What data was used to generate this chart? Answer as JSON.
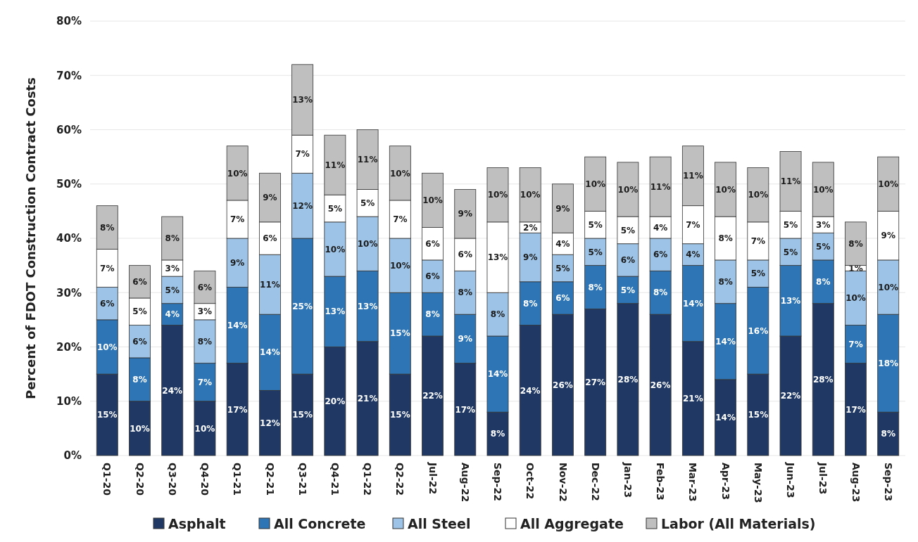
{
  "chart_data": {
    "type": "bar",
    "stacked": true,
    "ylabel": "Percent of FDOT Construction Contract Costs",
    "categories": [
      "Q1-20",
      "Q2-20",
      "Q3-20",
      "Q4-20",
      "Q1-21",
      "Q2-21",
      "Q3-21",
      "Q4-21",
      "Q1-22",
      "Q2-22",
      "Jul-22",
      "Aug-22",
      "Sep-22",
      "Oct-22",
      "Nov-22",
      "Dec-22",
      "Jan-23",
      "Feb-23",
      "Mar-23",
      "Apr-23",
      "May-23",
      "Jun-23",
      "Jul-23",
      "Aug-23",
      "Sep-23"
    ],
    "ylim": [
      0,
      80
    ],
    "yticks": [
      {
        "value": 0,
        "label": "0%"
      },
      {
        "value": 10,
        "label": "10%"
      },
      {
        "value": 20,
        "label": "20%"
      },
      {
        "value": 30,
        "label": "30%"
      },
      {
        "value": 40,
        "label": "40%"
      },
      {
        "value": 50,
        "label": "50%"
      },
      {
        "value": 60,
        "label": "60%"
      },
      {
        "value": 70,
        "label": "70%"
      },
      {
        "value": 80,
        "label": "80%"
      }
    ],
    "grid": "y",
    "legend": "bottom",
    "series": [
      {
        "name": "Asphalt",
        "color": "#1f3864",
        "values": [
          15,
          10,
          24,
          10,
          17,
          12,
          15,
          20,
          21,
          15,
          22,
          17,
          8,
          24,
          26,
          27,
          28,
          26,
          21,
          14,
          15,
          22,
          28,
          17,
          8
        ],
        "value_labels": [
          "15%",
          "10%",
          "24%",
          "10%",
          "17%",
          "12%",
          "15%",
          "20%",
          "21%",
          "15%",
          "22%",
          "17%",
          "8%",
          "24%",
          "26%",
          "27%",
          "28%",
          "26%",
          "21%",
          "14%",
          "15%",
          "22%",
          "28%",
          "17%",
          "8%"
        ]
      },
      {
        "name": "All Concrete",
        "color": "#2e75b6",
        "values": [
          10,
          8,
          4,
          7,
          14,
          14,
          25,
          13,
          13,
          15,
          8,
          9,
          14,
          8,
          6,
          8,
          5,
          8,
          14,
          14,
          16,
          13,
          8,
          7,
          18
        ],
        "value_labels": [
          "10%",
          "8%",
          "4%",
          "7%",
          "14%",
          "14%",
          "25%",
          "13%",
          "13%",
          "15%",
          "8%",
          "9%",
          "14%",
          "8%",
          "6%",
          "8%",
          "5%",
          "8%",
          "14%",
          "14%",
          "16%",
          "13%",
          "8%",
          "7%",
          "18%"
        ]
      },
      {
        "name": "All Steel",
        "color": "#9dc3e6",
        "values": [
          6,
          6,
          5,
          8,
          9,
          11,
          12,
          10,
          10,
          10,
          6,
          8,
          8,
          9,
          5,
          5,
          6,
          6,
          4,
          8,
          5,
          5,
          5,
          10,
          10
        ],
        "value_labels": [
          "6%",
          "6%",
          "5%",
          "8%",
          "9%",
          "11%",
          "12%",
          "10%",
          "10%",
          "10%",
          "6%",
          "8%",
          "8%",
          "9%",
          "5%",
          "5%",
          "6%",
          "6%",
          "4%",
          "8%",
          "5%",
          "5%",
          "5%",
          "10%",
          "10%"
        ]
      },
      {
        "name": "All Aggregate",
        "color": "#ffffff",
        "values": [
          7,
          5,
          3,
          3,
          7,
          6,
          7,
          5,
          5,
          7,
          6,
          6,
          13,
          2,
          4,
          5,
          5,
          4,
          7,
          8,
          7,
          5,
          3,
          1,
          9
        ],
        "value_labels": [
          "7%",
          "5%",
          "3%",
          "3%",
          "7%",
          "6%",
          "7%",
          "5%",
          "5%",
          "7%",
          "6%",
          "6%",
          "13%",
          "2%",
          "4%",
          "5%",
          "5%",
          "4%",
          "7%",
          "8%",
          "7%",
          "5%",
          "3%",
          "1%",
          "9%"
        ]
      },
      {
        "name": "Labor (All Materials)",
        "color": "#bfbfbf",
        "values": [
          8,
          6,
          8,
          6,
          10,
          9,
          13,
          11,
          11,
          10,
          10,
          9,
          10,
          10,
          9,
          10,
          10,
          11,
          11,
          10,
          10,
          11,
          10,
          8,
          10
        ],
        "value_labels": [
          "8%",
          "6%",
          "8%",
          "6%",
          "10%",
          "9%",
          "13%",
          "11%",
          "11%",
          "10%",
          "10%",
          "9%",
          "10%",
          "10%",
          "9%",
          "10%",
          "10%",
          "11%",
          "11%",
          "10%",
          "10%",
          "11%",
          "10%",
          "8%",
          "10%"
        ]
      }
    ]
  }
}
